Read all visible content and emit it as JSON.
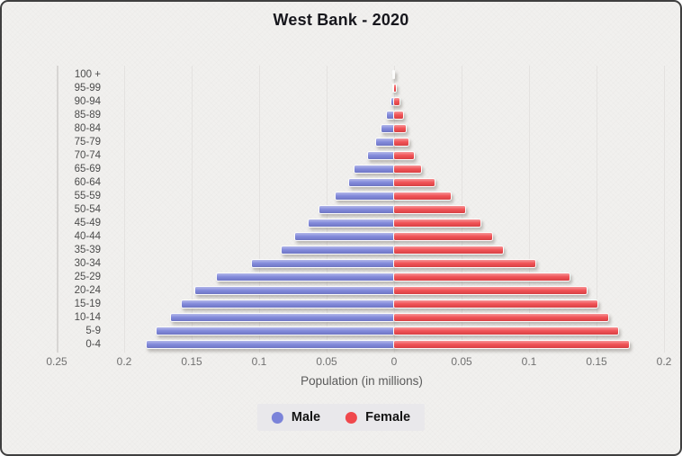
{
  "title": "West Bank - 2020",
  "xlabel": "Population (in millions)",
  "legend": {
    "male": "Male",
    "female": "Female"
  },
  "colors": {
    "male": "#7b83d9",
    "female": "#f0484c",
    "background": "#f1f0ee",
    "frame": "#3f3f3f"
  },
  "chart_data": {
    "type": "bar",
    "subtype": "population-pyramid",
    "orientation": "horizontal",
    "title": "West Bank - 2020",
    "xlabel": "Population (in millions)",
    "unit": "millions",
    "grid": true,
    "legend_position": "bottom",
    "categories_top_to_bottom": [
      "100 +",
      "95-99",
      "90-94",
      "85-89",
      "80-84",
      "75-79",
      "70-74",
      "65-69",
      "60-64",
      "55-59",
      "50-54",
      "45-49",
      "40-44",
      "35-39",
      "30-34",
      "25-29",
      "20-24",
      "15-19",
      "10-14",
      "5-9",
      "0-4"
    ],
    "series": [
      {
        "name": "Male",
        "side": "left",
        "values": [
          0.0002,
          0.0006,
          0.002,
          0.005,
          0.009,
          0.013,
          0.019,
          0.029,
          0.033,
          0.043,
          0.055,
          0.063,
          0.073,
          0.083,
          0.105,
          0.131,
          0.147,
          0.157,
          0.165,
          0.176,
          0.183
        ]
      },
      {
        "name": "Female",
        "side": "right",
        "values": [
          0.0004,
          0.0015,
          0.004,
          0.007,
          0.009,
          0.011,
          0.015,
          0.02,
          0.03,
          0.042,
          0.053,
          0.064,
          0.073,
          0.081,
          0.105,
          0.13,
          0.143,
          0.151,
          0.159,
          0.166,
          0.174
        ]
      }
    ],
    "x_tick_labels": [
      "0.25",
      "0.2",
      "0.15",
      "0.1",
      "0.05",
      "0",
      "0.05",
      "0.1",
      "0.15",
      "0.2"
    ],
    "x_tick_values": [
      -0.25,
      -0.2,
      -0.15,
      -0.1,
      -0.05,
      0,
      0.05,
      0.1,
      0.15,
      0.2
    ],
    "xlim": [
      -0.25,
      0.2
    ]
  }
}
